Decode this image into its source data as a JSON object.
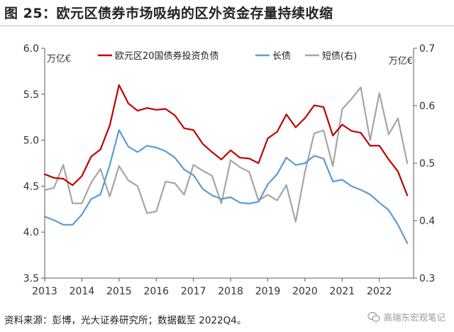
{
  "title": "图 25：欧元区债券市场吸纳的区外资金存量持续收缩",
  "source": "资料来源：彭博，光大证券研究所；数据截至 2022Q4。",
  "watermark": "高瑞东宏观笔记",
  "chart_data": {
    "type": "line",
    "title": "",
    "y_left_unit": "万亿€",
    "y_right_unit": "万亿€",
    "ylim_left": [
      3.5,
      6.0
    ],
    "ylim_right": [
      0.3,
      0.7
    ],
    "yticks_left": [
      "3.5",
      "4.0",
      "4.5",
      "5.0",
      "5.5",
      "6.0"
    ],
    "yticks_right": [
      "0.3",
      "0.4",
      "0.5",
      "0.6",
      "0.7"
    ],
    "xlim": [
      2013.0,
      2022.92
    ],
    "xticks": [
      "2013",
      "2014",
      "2015",
      "2016",
      "2017",
      "2018",
      "2019",
      "2020",
      "2021",
      "2022"
    ],
    "legend_position": "top",
    "grid": false,
    "series": [
      {
        "name": "欧元区20国债券投资负债",
        "axis": "left",
        "color": "#c00000",
        "x": [
          2013.0,
          2013.25,
          2013.5,
          2013.75,
          2014.0,
          2014.25,
          2014.5,
          2014.75,
          2015.0,
          2015.25,
          2015.5,
          2015.75,
          2016.0,
          2016.25,
          2016.5,
          2016.75,
          2017.0,
          2017.25,
          2017.5,
          2017.75,
          2018.0,
          2018.25,
          2018.5,
          2018.75,
          2019.0,
          2019.25,
          2019.5,
          2019.75,
          2020.0,
          2020.25,
          2020.5,
          2020.75,
          2021.0,
          2021.25,
          2021.5,
          2021.75,
          2022.0,
          2022.25,
          2022.5,
          2022.75
        ],
        "values": [
          4.63,
          4.59,
          4.58,
          4.51,
          4.61,
          4.82,
          4.9,
          5.16,
          5.6,
          5.4,
          5.32,
          5.35,
          5.33,
          5.34,
          5.27,
          5.13,
          5.11,
          4.96,
          4.87,
          4.79,
          4.89,
          4.81,
          4.8,
          4.75,
          5.02,
          5.09,
          5.28,
          5.14,
          5.24,
          5.38,
          5.36,
          5.05,
          5.17,
          5.1,
          5.08,
          4.94,
          4.94,
          4.79,
          4.66,
          4.4
        ]
      },
      {
        "name": "长债",
        "axis": "left",
        "color": "#5b9bd5",
        "x": [
          2013.0,
          2013.25,
          2013.5,
          2013.75,
          2014.0,
          2014.25,
          2014.5,
          2014.75,
          2015.0,
          2015.25,
          2015.5,
          2015.75,
          2016.0,
          2016.25,
          2016.5,
          2016.75,
          2017.0,
          2017.25,
          2017.5,
          2017.75,
          2018.0,
          2018.25,
          2018.5,
          2018.75,
          2019.0,
          2019.25,
          2019.5,
          2019.75,
          2020.0,
          2020.25,
          2020.5,
          2020.75,
          2021.0,
          2021.25,
          2021.5,
          2021.75,
          2022.0,
          2022.25,
          2022.5,
          2022.75
        ],
        "values": [
          4.17,
          4.13,
          4.08,
          4.08,
          4.19,
          4.36,
          4.41,
          4.73,
          5.11,
          4.93,
          4.87,
          4.94,
          4.92,
          4.88,
          4.81,
          4.68,
          4.62,
          4.47,
          4.4,
          4.36,
          4.38,
          4.32,
          4.31,
          4.33,
          4.52,
          4.63,
          4.81,
          4.73,
          4.75,
          4.83,
          4.8,
          4.55,
          4.57,
          4.5,
          4.46,
          4.41,
          4.32,
          4.24,
          4.08,
          3.88
        ]
      },
      {
        "name": "短债(右)",
        "axis": "right",
        "color": "#a5a5a5",
        "x": [
          2013.0,
          2013.25,
          2013.5,
          2013.75,
          2014.0,
          2014.25,
          2014.5,
          2014.75,
          2015.0,
          2015.25,
          2015.5,
          2015.75,
          2016.0,
          2016.25,
          2016.5,
          2016.75,
          2017.0,
          2017.25,
          2017.5,
          2017.75,
          2018.0,
          2018.25,
          2018.5,
          2018.75,
          2019.0,
          2019.25,
          2019.5,
          2019.75,
          2020.0,
          2020.25,
          2020.5,
          2020.75,
          2021.0,
          2021.25,
          2021.5,
          2021.75,
          2022.0,
          2022.25,
          2022.5,
          2022.75
        ],
        "values": [
          0.453,
          0.457,
          0.497,
          0.43,
          0.43,
          0.466,
          0.49,
          0.442,
          0.495,
          0.47,
          0.46,
          0.413,
          0.416,
          0.468,
          0.465,
          0.445,
          0.497,
          0.487,
          0.478,
          0.43,
          0.505,
          0.493,
          0.485,
          0.435,
          0.445,
          0.435,
          0.462,
          0.398,
          0.485,
          0.552,
          0.557,
          0.495,
          0.594,
          0.612,
          0.632,
          0.54,
          0.622,
          0.55,
          0.578,
          0.5
        ]
      }
    ]
  }
}
